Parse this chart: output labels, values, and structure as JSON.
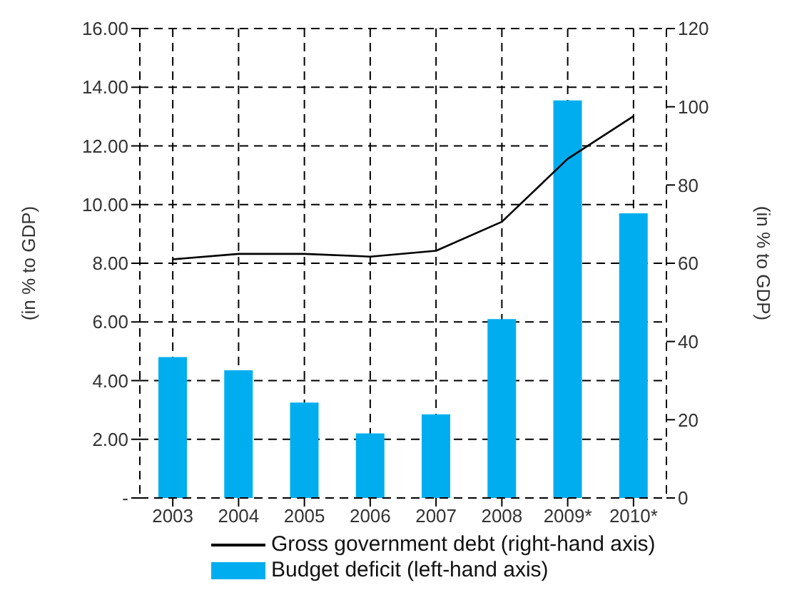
{
  "chart_data": {
    "type": "bar",
    "categories": [
      "2003",
      "2004",
      "2005",
      "2006",
      "2007",
      "2008",
      "2009*",
      "2010*"
    ],
    "series": [
      {
        "name": "Gross government debt (right-hand axis)",
        "type": "line",
        "axis": "y2",
        "color": "#000000",
        "values": [
          61,
          62.4,
          62.4,
          61.7,
          63.2,
          70.6,
          86.7,
          97.6
        ]
      },
      {
        "name": "Budget deficit (left-hand axis)",
        "color": "#00aeef",
        "values": [
          4.8,
          4.35,
          3.25,
          2.2,
          2.85,
          6.1,
          13.55,
          9.7
        ]
      }
    ],
    "ylabel": "(in % to GDP)",
    "y2label": "(in % to GDP)",
    "ylim": [
      0,
      16
    ],
    "yticks": [
      {
        "value": 0,
        "label": "-"
      },
      {
        "value": 2,
        "label": "2.00"
      },
      {
        "value": 4,
        "label": "4.00"
      },
      {
        "value": 6,
        "label": "6.00"
      },
      {
        "value": 8,
        "label": "8.00"
      },
      {
        "value": 10,
        "label": "10.00"
      },
      {
        "value": 12,
        "label": "12.00"
      },
      {
        "value": 14,
        "label": "14.00"
      },
      {
        "value": 16,
        "label": "16.00"
      }
    ],
    "y2lim": [
      0,
      120
    ],
    "y2ticks": [
      0,
      20,
      40,
      60,
      80,
      100,
      120
    ],
    "grid": true,
    "legend": "bottom",
    "marker": "none",
    "line_style": "solid"
  }
}
